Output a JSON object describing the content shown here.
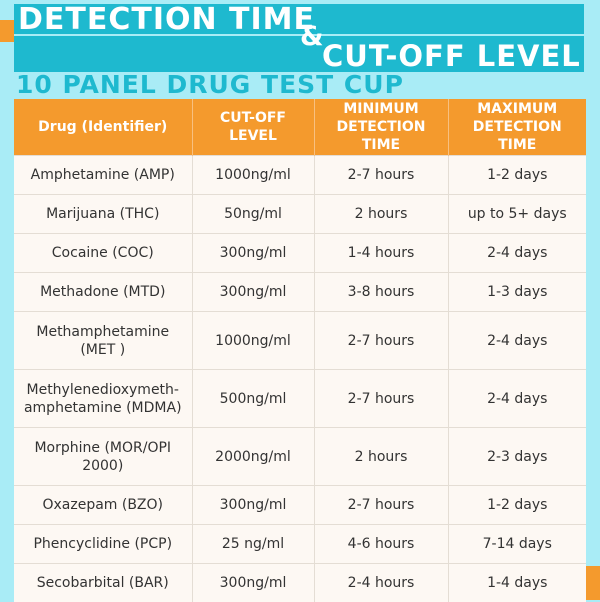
{
  "header": {
    "title_line1": "DETECTION TIME",
    "ampersand": "&",
    "title_line2": "CUT-OFF LEVEL",
    "subtitle": "10 PANEL DRUG TEST CUP"
  },
  "table": {
    "columns": [
      "Drug (Identifier)",
      "CUT-OFF LEVEL",
      "MINIMUM DETECTION TIME",
      "MAXIMUM DETECTION TIME"
    ],
    "rows": [
      {
        "drug": "Amphetamine (AMP)",
        "cutoff": "1000ng/ml",
        "min": "2-7 hours",
        "max": "1-2 days"
      },
      {
        "drug": "Marijuana (THC)",
        "cutoff": "50ng/ml",
        "min": "2 hours",
        "max": "up to 5+ days"
      },
      {
        "drug": "Cocaine (COC)",
        "cutoff": "300ng/ml",
        "min": "1-4 hours",
        "max": "2-4 days"
      },
      {
        "drug": "Methadone (MTD)",
        "cutoff": "300ng/ml",
        "min": "3-8 hours",
        "max": "1-3 days"
      },
      {
        "drug": "Methamphetamine (MET )",
        "cutoff": "1000ng/ml",
        "min": "2-7 hours",
        "max": "2-4 days"
      },
      {
        "drug": "Methylenedioxymeth-amphetamine (MDMA)",
        "cutoff": "500ng/ml",
        "min": "2-7 hours",
        "max": "2-4 days"
      },
      {
        "drug": "Morphine (MOR/OPI 2000)",
        "cutoff": "2000ng/ml",
        "min": "2 hours",
        "max": "2-3 days"
      },
      {
        "drug": "Oxazepam (BZO)",
        "cutoff": "300ng/ml",
        "min": "2-7 hours",
        "max": "1-2 days"
      },
      {
        "drug": "Phencyclidine (PCP)",
        "cutoff": "25 ng/ml",
        "min": "4-6 hours",
        "max": "7-14 days"
      },
      {
        "drug": "Secobarbital (BAR)",
        "cutoff": "300ng/ml",
        "min": "2-4 hours",
        "max": "1-4 days"
      }
    ]
  },
  "colors": {
    "accent_orange": "#f49a2d",
    "accent_teal": "#1eb9cf",
    "background": "#a9ecf6"
  }
}
